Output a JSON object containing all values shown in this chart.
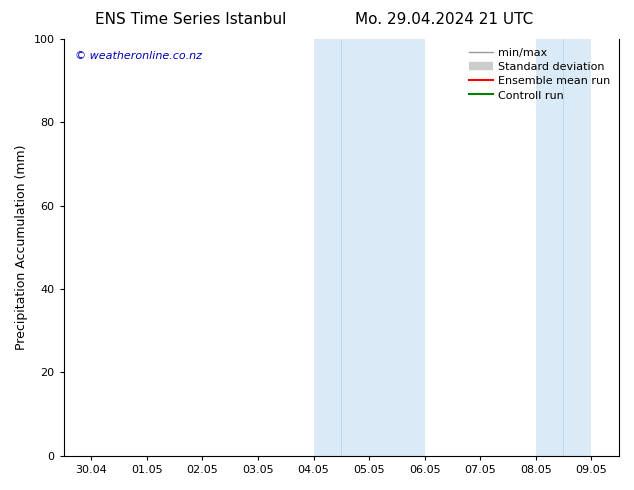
{
  "title_left": "ENS Time Series Istanbul",
  "title_right": "Mo. 29.04.2024 21 UTC",
  "ylabel": "Precipitation Accumulation (mm)",
  "ylim": [
    0,
    100
  ],
  "yticks": [
    0,
    20,
    40,
    60,
    80,
    100
  ],
  "xtick_labels": [
    "30.04",
    "01.05",
    "02.05",
    "03.05",
    "04.05",
    "05.05",
    "06.05",
    "07.05",
    "08.05",
    "09.05"
  ],
  "xmin": 0,
  "xmax": 9,
  "background_color": "#ffffff",
  "shaded_regions": [
    {
      "xstart": 4.0,
      "xend": 4.5,
      "color": "#daeaf6"
    },
    {
      "xstart": 4.5,
      "xend": 6.0,
      "color": "#daeaf6"
    },
    {
      "xstart": 8.0,
      "xend": 8.5,
      "color": "#daeaf6"
    },
    {
      "xstart": 8.5,
      "xend": 9.0,
      "color": "#daeaf6"
    }
  ],
  "legend_items": [
    {
      "label": "min/max",
      "color": "#999999",
      "lw": 1.0
    },
    {
      "label": "Standard deviation",
      "color": "#cccccc",
      "lw": 6
    },
    {
      "label": "Ensemble mean run",
      "color": "#ff0000",
      "lw": 1.5
    },
    {
      "label": "Controll run",
      "color": "#008000",
      "lw": 1.5
    }
  ],
  "watermark": "© weatheronline.co.nz",
  "watermark_color": "#0000bb",
  "watermark_fontsize": 8,
  "title_fontsize": 11,
  "tick_fontsize": 8,
  "ylabel_fontsize": 9,
  "legend_fontsize": 8
}
